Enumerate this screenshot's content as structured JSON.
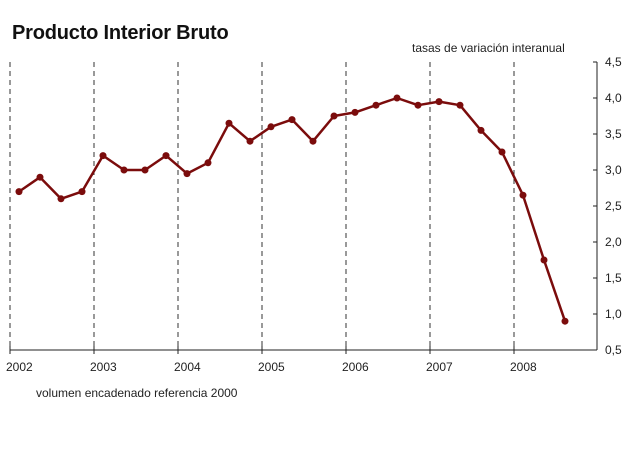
{
  "header": {
    "title": "Producto Interior Bruto",
    "subtitle": "tasas de variación interanual"
  },
  "footer": {
    "note": "volumen encadenado referencia 2000"
  },
  "colors": {
    "series": "#7b0c0c",
    "axis": "#222222",
    "gridline": "#333333"
  },
  "chart_data": {
    "type": "line",
    "title": "Producto Interior Bruto",
    "subtitle": "tasas de variación interanual",
    "note": "volumen encadenado referencia 2000",
    "xlabel": "",
    "ylabel": "",
    "ylim": [
      0.5,
      4.5
    ],
    "y_ticks": [
      "0,5",
      "1,0",
      "1,5",
      "2,0",
      "2,5",
      "3,0",
      "3,5",
      "4,0",
      "4,5"
    ],
    "y_axis_position": "right",
    "x_tick_labels": [
      "2002",
      "2003",
      "2004",
      "2005",
      "2006",
      "2007",
      "2008"
    ],
    "grid": "vertical dashed lines at each year",
    "legend": "none",
    "x": [
      "2002T1",
      "2002T2",
      "2002T3",
      "2002T4",
      "2003T1",
      "2003T2",
      "2003T3",
      "2003T4",
      "2004T1",
      "2004T2",
      "2004T3",
      "2004T4",
      "2005T1",
      "2005T2",
      "2005T3",
      "2005T4",
      "2006T1",
      "2006T2",
      "2006T3",
      "2006T4",
      "2007T1",
      "2007T2",
      "2007T3",
      "2007T4",
      "2008T1",
      "2008T2",
      "2008T3"
    ],
    "series": [
      {
        "name": "PIB",
        "values": [
          2.7,
          2.9,
          2.6,
          2.7,
          3.2,
          3.0,
          3.0,
          3.2,
          2.95,
          3.1,
          3.65,
          3.4,
          3.6,
          3.7,
          3.4,
          3.75,
          3.8,
          3.9,
          4.0,
          3.9,
          3.95,
          3.9,
          3.55,
          3.25,
          2.65,
          1.75,
          0.9
        ]
      }
    ]
  }
}
